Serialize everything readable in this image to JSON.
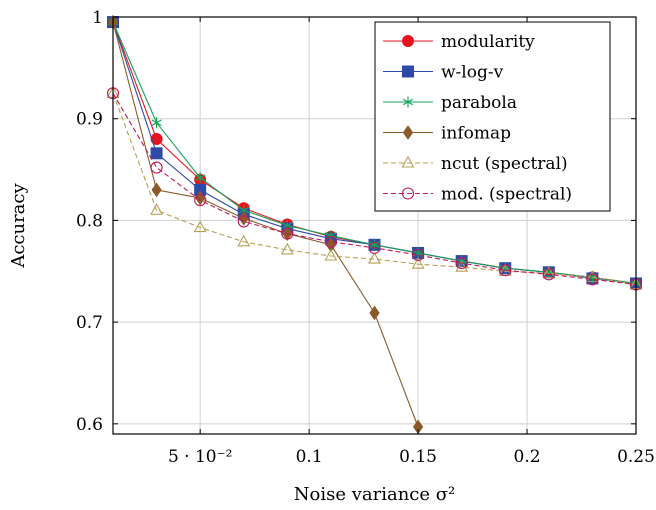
{
  "chart_data": {
    "type": "line",
    "xlabel": "Noise variance σ²",
    "ylabel": "Accuracy",
    "xlim": [
      0.01,
      0.25
    ],
    "ylim": [
      0.59,
      1.0
    ],
    "x_ticks": [
      {
        "value": 0.05,
        "label": "5 · 10⁻²"
      },
      {
        "value": 0.1,
        "label": "0.1"
      },
      {
        "value": 0.15,
        "label": "0.15"
      },
      {
        "value": 0.2,
        "label": "0.2"
      },
      {
        "value": 0.25,
        "label": "0.25"
      }
    ],
    "y_ticks": [
      {
        "value": 0.6,
        "label": "0.6"
      },
      {
        "value": 0.7,
        "label": "0.7"
      },
      {
        "value": 0.8,
        "label": "0.8"
      },
      {
        "value": 0.9,
        "label": "0.9"
      },
      {
        "value": 1.0,
        "label": "1"
      }
    ],
    "grid": true,
    "legend_position": "top-right",
    "series": [
      {
        "name": "modularity",
        "color": "#e8141c",
        "marker": "circle",
        "dashed": false,
        "x": [
          0.01,
          0.03,
          0.05,
          0.07,
          0.09,
          0.11,
          0.13,
          0.15,
          0.17,
          0.19,
          0.21,
          0.23,
          0.25
        ],
        "y": [
          0.995,
          0.88,
          0.84,
          0.812,
          0.796,
          0.784,
          0.776,
          0.768,
          0.76,
          0.753,
          0.749,
          0.744,
          0.738
        ]
      },
      {
        "name": "w-log-v",
        "color": "#2e4aa8",
        "marker": "square",
        "dashed": false,
        "x": [
          0.01,
          0.03,
          0.05,
          0.07,
          0.09,
          0.11,
          0.13,
          0.15,
          0.17,
          0.19,
          0.21,
          0.23,
          0.25
        ],
        "y": [
          0.995,
          0.866,
          0.83,
          0.806,
          0.792,
          0.782,
          0.776,
          0.768,
          0.76,
          0.753,
          0.749,
          0.743,
          0.738
        ]
      },
      {
        "name": "parabola",
        "color": "#17a35a",
        "marker": "star",
        "dashed": false,
        "x": [
          0.01,
          0.03,
          0.05,
          0.07,
          0.09,
          0.11,
          0.13,
          0.15,
          0.17,
          0.19,
          0.21,
          0.23,
          0.25
        ],
        "y": [
          0.995,
          0.896,
          0.842,
          0.81,
          0.795,
          0.785,
          0.776,
          0.768,
          0.76,
          0.753,
          0.749,
          0.744,
          0.738
        ]
      },
      {
        "name": "infomap",
        "color": "#8b5a2b",
        "marker": "diamond",
        "dashed": false,
        "x": [
          0.01,
          0.03,
          0.05,
          0.07,
          0.09,
          0.11,
          0.13,
          0.15
        ],
        "y": [
          0.995,
          0.83,
          0.822,
          0.802,
          0.787,
          0.776,
          0.709,
          0.597
        ]
      },
      {
        "name": "ncut (spectral)",
        "color": "#b5a050",
        "marker": "triangle",
        "dashed": true,
        "x": [
          0.01,
          0.03,
          0.05,
          0.07,
          0.09,
          0.11,
          0.13,
          0.15,
          0.17,
          0.19,
          0.21,
          0.23,
          0.25
        ],
        "y": [
          0.925,
          0.81,
          0.793,
          0.779,
          0.771,
          0.765,
          0.762,
          0.757,
          0.754,
          0.75,
          0.748,
          0.744,
          0.737
        ]
      },
      {
        "name": "mod. (spectral)",
        "color": "#c0185a",
        "marker": "open-circle",
        "dashed": true,
        "x": [
          0.01,
          0.03,
          0.05,
          0.07,
          0.09,
          0.11,
          0.13,
          0.15,
          0.17,
          0.19,
          0.21,
          0.23,
          0.25
        ],
        "y": [
          0.925,
          0.852,
          0.82,
          0.799,
          0.787,
          0.779,
          0.773,
          0.766,
          0.758,
          0.751,
          0.747,
          0.742,
          0.737
        ]
      }
    ]
  }
}
